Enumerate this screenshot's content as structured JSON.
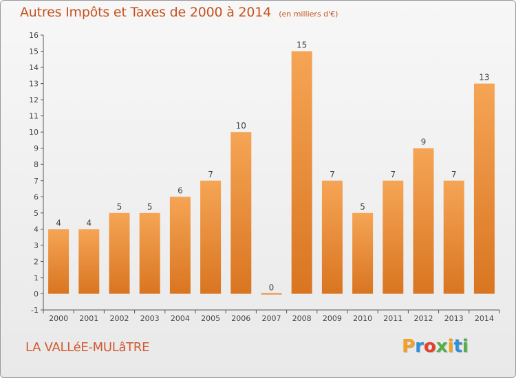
{
  "header": {
    "title": "Autres Impôts et Taxes de 2000 à 2014",
    "subtitle": "(en milliers d'€)"
  },
  "footer": {
    "city": "LA VALLéE-MULâTRE",
    "logo_letters": [
      "P",
      "r",
      "o",
      "x",
      "i",
      "t",
      "i"
    ],
    "logo_colors": [
      "#f2a126",
      "#2f8fd8",
      "#e63f2a",
      "#52b04c",
      "#f2a126",
      "#2f8fd8",
      "#52b04c"
    ]
  },
  "colors": {
    "bar_top": "#f5a555",
    "bar_bottom": "#d97521",
    "text": "#c5521e"
  },
  "chart_data": {
    "type": "bar",
    "categories": [
      "2000",
      "2001",
      "2002",
      "2003",
      "2004",
      "2005",
      "2006",
      "2007",
      "2008",
      "2009",
      "2010",
      "2011",
      "2012",
      "2013",
      "2014"
    ],
    "values": [
      4,
      4,
      5,
      5,
      6,
      7,
      10,
      0,
      15,
      7,
      5,
      7,
      9,
      7,
      13
    ],
    "data_labels": [
      "4",
      "4",
      "5",
      "5",
      "6",
      "7",
      "10",
      "0",
      "15",
      "7",
      "5",
      "7",
      "9",
      "7",
      "13"
    ],
    "ylim": [
      -1,
      16
    ],
    "yticks": [
      -1,
      0,
      1,
      2,
      3,
      4,
      5,
      6,
      7,
      8,
      9,
      10,
      11,
      12,
      13,
      14,
      15,
      16
    ],
    "grid": false,
    "xlabel": "",
    "ylabel": ""
  }
}
